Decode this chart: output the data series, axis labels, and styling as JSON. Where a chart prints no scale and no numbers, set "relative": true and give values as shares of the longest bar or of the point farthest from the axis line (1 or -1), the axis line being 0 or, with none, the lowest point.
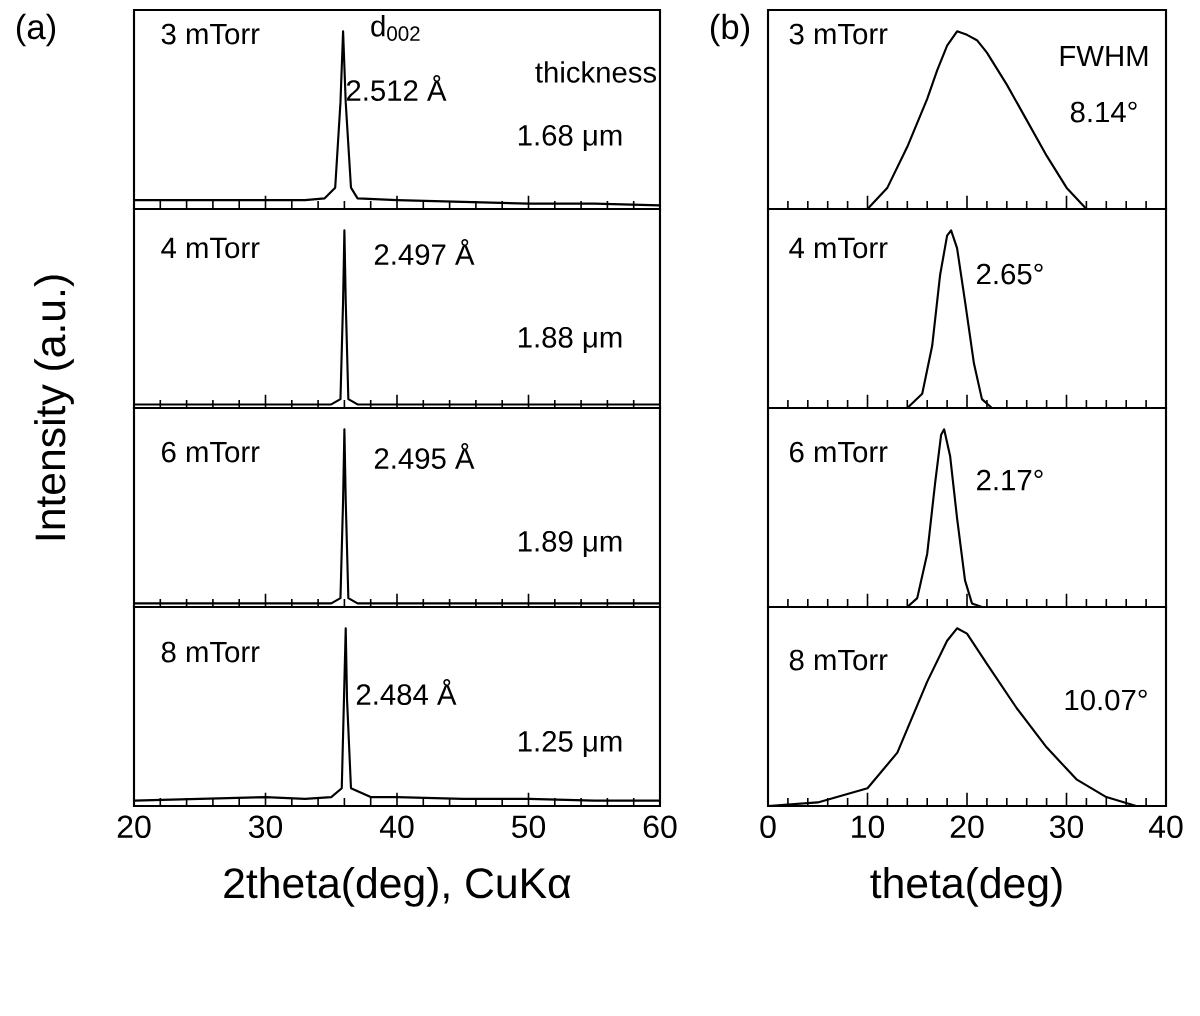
{
  "chart_data": [
    {
      "type": "line",
      "relative": true,
      "title": "3 mTorr",
      "ylabel": "Intensity (a.u.)",
      "annotations": [
        "(a)",
        "d$_{002}$",
        "2.512 Å",
        "thickness",
        "1.68 μm"
      ],
      "xlim": [
        20,
        60
      ],
      "xticks": [
        20,
        30,
        40,
        50,
        60
      ],
      "tick_labels": false,
      "x": [
        20,
        25,
        30,
        33,
        34.5,
        35.3,
        35.7,
        35.9,
        36.1,
        36.5,
        37,
        40,
        45,
        50,
        55,
        60
      ],
      "series": [
        {
          "color": "#000000",
          "values": [
            0.05,
            0.05,
            0.05,
            0.05,
            0.06,
            0.12,
            0.6,
            1.0,
            0.6,
            0.12,
            0.06,
            0.05,
            0.04,
            0.03,
            0.03,
            0.02
          ]
        }
      ]
    },
    {
      "type": "line",
      "relative": true,
      "title": "4 mTorr",
      "annotations": [
        "2.497 Å",
        "1.88 μm"
      ],
      "xlim": [
        20,
        60
      ],
      "xticks": [
        20,
        30,
        40,
        50,
        60
      ],
      "tick_labels": false,
      "x": [
        20,
        30,
        35,
        35.7,
        35.9,
        36.0,
        36.1,
        36.3,
        37,
        40,
        50,
        60
      ],
      "series": [
        {
          "color": "#000000",
          "values": [
            0.02,
            0.02,
            0.02,
            0.05,
            0.6,
            1.0,
            0.6,
            0.05,
            0.02,
            0.02,
            0.02,
            0.02
          ]
        }
      ]
    },
    {
      "type": "line",
      "relative": true,
      "title": "6 mTorr",
      "annotations": [
        "2.495 Å",
        "1.89 μm"
      ],
      "xlim": [
        20,
        60
      ],
      "xticks": [
        20,
        30,
        40,
        50,
        60
      ],
      "tick_labels": false,
      "x": [
        20,
        30,
        35,
        35.7,
        35.9,
        36.0,
        36.1,
        36.3,
        37,
        40,
        50,
        60
      ],
      "series": [
        {
          "color": "#000000",
          "values": [
            0.02,
            0.02,
            0.02,
            0.05,
            0.6,
            1.0,
            0.6,
            0.05,
            0.02,
            0.02,
            0.02,
            0.02
          ]
        }
      ]
    },
    {
      "type": "line",
      "relative": true,
      "title": "8 mTorr",
      "annotations": [
        "2.484 Å",
        "1.25 μm"
      ],
      "xlim": [
        20,
        60
      ],
      "xticks": [
        20,
        30,
        40,
        50,
        60
      ],
      "tick_labels": "x",
      "xlabel": "2theta(deg), CuKα",
      "x": [
        20,
        25,
        30,
        33,
        35,
        35.8,
        36.0,
        36.1,
        36.2,
        36.5,
        38,
        40,
        45,
        50,
        55,
        60
      ],
      "series": [
        {
          "color": "#000000",
          "values": [
            0.03,
            0.04,
            0.05,
            0.04,
            0.05,
            0.1,
            0.7,
            1.0,
            0.6,
            0.1,
            0.05,
            0.05,
            0.04,
            0.04,
            0.03,
            0.03
          ]
        }
      ]
    },
    {
      "type": "line",
      "relative": true,
      "title": "3 mTorr",
      "annotations": [
        "(b)",
        "FWHM",
        "8.14°"
      ],
      "xlim": [
        0,
        40
      ],
      "xticks": [
        0,
        10,
        20,
        30,
        40
      ],
      "tick_labels": false,
      "x": [
        10,
        12,
        14,
        16,
        17,
        18,
        19,
        20,
        21,
        22,
        24,
        26,
        28,
        30,
        32
      ],
      "series": [
        {
          "color": "#000000",
          "values": [
            0.0,
            0.12,
            0.35,
            0.62,
            0.78,
            0.92,
            1.0,
            0.98,
            0.95,
            0.88,
            0.7,
            0.5,
            0.3,
            0.12,
            0.0
          ]
        }
      ]
    },
    {
      "type": "line",
      "relative": true,
      "title": "4 mTorr",
      "annotations": [
        "2.65°"
      ],
      "xlim": [
        0,
        40
      ],
      "xticks": [
        0,
        10,
        20,
        30,
        40
      ],
      "tick_labels": false,
      "x": [
        14,
        15.5,
        16.5,
        17.3,
        18.0,
        18.4,
        19.0,
        19.8,
        20.7,
        21.5,
        22.5
      ],
      "series": [
        {
          "color": "#000000",
          "values": [
            0.0,
            0.08,
            0.35,
            0.75,
            0.97,
            1.0,
            0.9,
            0.6,
            0.25,
            0.05,
            0.0
          ]
        }
      ]
    },
    {
      "type": "line",
      "relative": true,
      "title": "6 mTorr",
      "annotations": [
        "2.17°"
      ],
      "xlim": [
        0,
        40
      ],
      "xticks": [
        0,
        10,
        20,
        30,
        40
      ],
      "tick_labels": false,
      "x": [
        14,
        15,
        16,
        16.8,
        17.4,
        17.7,
        18.3,
        19,
        19.8,
        20.5,
        21.5
      ],
      "series": [
        {
          "color": "#000000",
          "values": [
            0.0,
            0.05,
            0.3,
            0.7,
            0.97,
            1.0,
            0.85,
            0.5,
            0.15,
            0.02,
            0.0
          ]
        }
      ]
    },
    {
      "type": "line",
      "relative": true,
      "title": "8 mTorr",
      "annotations": [
        "10.07°"
      ],
      "xlim": [
        0,
        40
      ],
      "xticks": [
        0,
        10,
        20,
        30,
        40
      ],
      "tick_labels": "x",
      "xlabel": "theta(deg)",
      "x": [
        0,
        5,
        10,
        13,
        16,
        18,
        19,
        20,
        22,
        25,
        28,
        31,
        34,
        37
      ],
      "series": [
        {
          "color": "#000000",
          "values": [
            0.0,
            0.02,
            0.1,
            0.3,
            0.7,
            0.93,
            1.0,
            0.97,
            0.8,
            0.55,
            0.33,
            0.15,
            0.05,
            0.0
          ]
        }
      ]
    }
  ]
}
